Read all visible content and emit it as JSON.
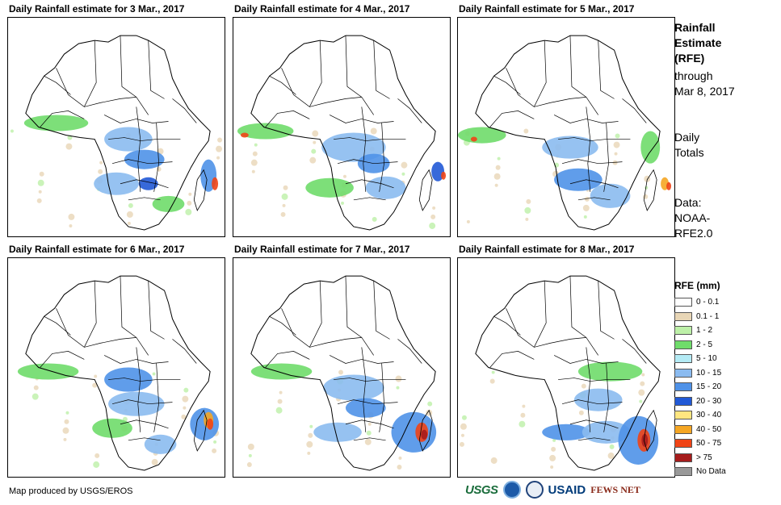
{
  "panels": [
    {
      "title": "Daily Rainfall estimate for 3 Mar., 2017"
    },
    {
      "title": "Daily Rainfall estimate for 4 Mar., 2017"
    },
    {
      "title": "Daily Rainfall estimate for 5 Mar., 2017"
    },
    {
      "title": "Daily Rainfall estimate for 6 Mar., 2017"
    },
    {
      "title": "Daily Rainfall estimate for 7 Mar., 2017"
    },
    {
      "title": "Daily Rainfall estimate for 8 Mar., 2017"
    }
  ],
  "sidebar": {
    "title_line1": "Rainfall",
    "title_line2": "Estimate",
    "title_line3": "(RFE)",
    "through": "through",
    "through_date": "Mar 8, 2017",
    "daily": "Daily",
    "totals": "Totals",
    "data_label": "Data:",
    "data_src1": "NOAA-",
    "data_src2": "RFE2.0"
  },
  "legend": {
    "title": "RFE (mm)",
    "items": [
      {
        "label": "0 - 0.1",
        "color": "#ffffff"
      },
      {
        "label": "0.1 - 1",
        "color": "#e8d6b6"
      },
      {
        "label": "1 - 2",
        "color": "#bdf0a8"
      },
      {
        "label": "2 - 5",
        "color": "#6fdc6a"
      },
      {
        "label": "5 - 10",
        "color": "#b4ebf5"
      },
      {
        "label": "10 - 15",
        "color": "#8bbbf0"
      },
      {
        "label": "15 - 20",
        "color": "#4f92e8"
      },
      {
        "label": "20 - 30",
        "color": "#2159d6"
      },
      {
        "label": "30 - 40",
        "color": "#ffe680"
      },
      {
        "label": "40 - 50",
        "color": "#f5a623"
      },
      {
        "label": "50 - 75",
        "color": "#f04416"
      },
      {
        "label": "> 75",
        "color": "#a61c1c"
      },
      {
        "label": "No Data",
        "color": "#999999"
      }
    ]
  },
  "footer": {
    "credit": "Map produced by USGS/EROS"
  },
  "logos": {
    "usgs": "USGS",
    "usaid": "USAID",
    "fews": "FEWS NET"
  }
}
